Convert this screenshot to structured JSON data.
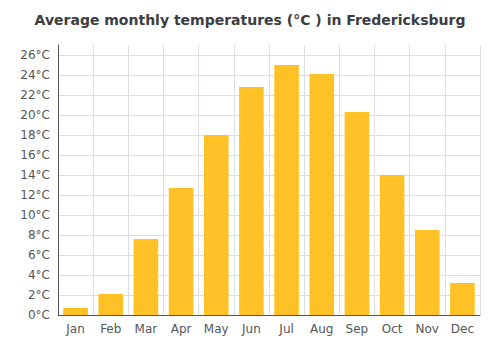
{
  "chart_data": {
    "type": "bar",
    "title": "Average monthly temperatures (°C ) in Fredericksburg",
    "categories": [
      "Jan",
      "Feb",
      "Mar",
      "Apr",
      "May",
      "Jun",
      "Jul",
      "Aug",
      "Sep",
      "Oct",
      "Nov",
      "Dec"
    ],
    "values": [
      0.7,
      2.1,
      7.6,
      12.7,
      18.0,
      22.8,
      25.0,
      24.1,
      20.3,
      14.0,
      8.5,
      3.2
    ],
    "color": "#FFC125",
    "ylim": [
      0,
      27
    ],
    "yticks": [
      {
        "value": 0,
        "label": "0°C"
      },
      {
        "value": 2,
        "label": "2°C"
      },
      {
        "value": 4,
        "label": "4°C"
      },
      {
        "value": 6,
        "label": "6°C"
      },
      {
        "value": 8,
        "label": "8°C"
      },
      {
        "value": 10,
        "label": "10°C"
      },
      {
        "value": 12,
        "label": "12°C"
      },
      {
        "value": 14,
        "label": "14°C"
      },
      {
        "value": 16,
        "label": "16°C"
      },
      {
        "value": 18,
        "label": "18°C"
      },
      {
        "value": 20,
        "label": "20°C"
      },
      {
        "value": 22,
        "label": "22°C"
      },
      {
        "value": 24,
        "label": "24°C"
      },
      {
        "value": 26,
        "label": "26°C"
      }
    ],
    "grid": true
  }
}
